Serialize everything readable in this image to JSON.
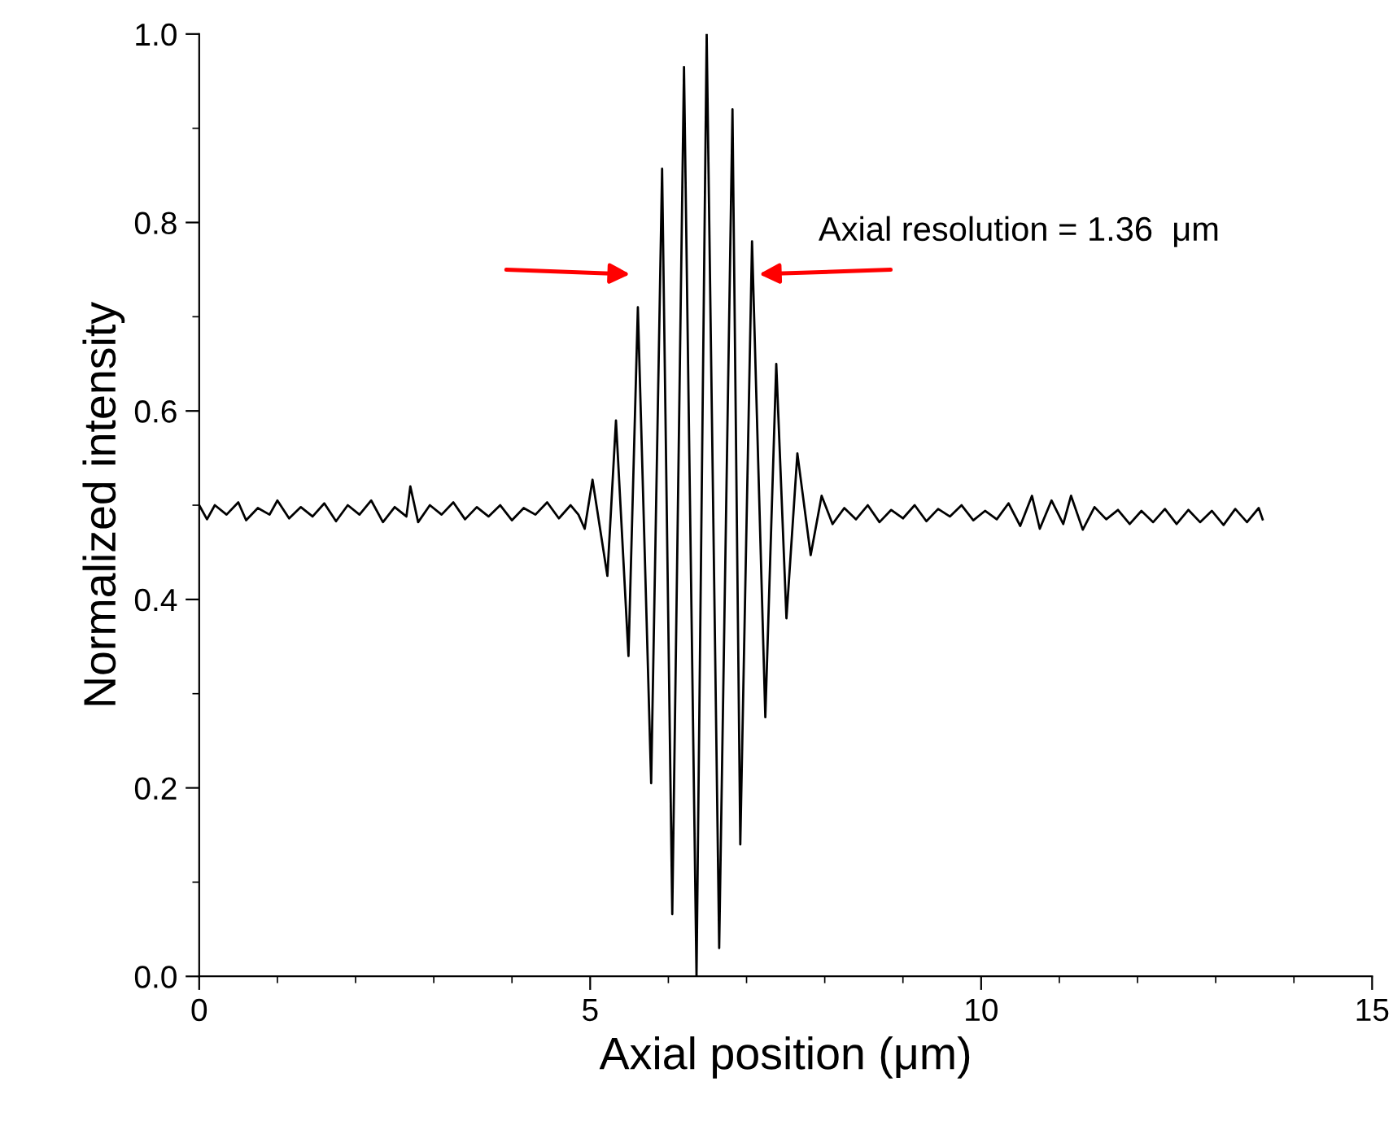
{
  "chart_data": {
    "type": "line",
    "xlabel": "Axial position (μm)",
    "ylabel": "Normalized intensity",
    "xlim": [
      0,
      15
    ],
    "xticks": [
      0,
      5,
      10,
      15
    ],
    "ylim": [
      0,
      1.0
    ],
    "yticks": [
      {
        "value": 0,
        "label": "0.0"
      },
      0.2,
      0.4,
      0.6,
      0.8,
      {
        "value": 1.0,
        "label": "1.0"
      }
    ],
    "grid": false,
    "marker": "none",
    "line_style": "solid",
    "annotations": [
      {
        "text": "Axial resolution = 1.36  μm",
        "x": 7.1,
        "y": 0.745
      }
    ],
    "series": [
      {
        "color": "#000000",
        "x": [
          0,
          0.1,
          0.2,
          0.35,
          0.5,
          0.6,
          0.75,
          0.9,
          1.0,
          1.15,
          1.3,
          1.45,
          1.6,
          1.75,
          1.9,
          2.05,
          2.2,
          2.35,
          2.5,
          2.65,
          2.7,
          2.8,
          2.95,
          3.1,
          3.25,
          3.4,
          3.55,
          3.7,
          3.85,
          4.0,
          4.15,
          4.3,
          4.45,
          4.6,
          4.75,
          4.85,
          4.93,
          5.03,
          5.22,
          5.33,
          5.49,
          5.61,
          5.78,
          5.92,
          6.05,
          6.2,
          6.36,
          6.49,
          6.65,
          6.82,
          6.92,
          7.07,
          7.24,
          7.38,
          7.51,
          7.65,
          7.82,
          7.96,
          8.1,
          8.25,
          8.4,
          8.55,
          8.7,
          8.85,
          9.0,
          9.15,
          9.3,
          9.45,
          9.6,
          9.75,
          9.9,
          10.05,
          10.2,
          10.35,
          10.5,
          10.65,
          10.75,
          10.9,
          11.05,
          11.15,
          11.3,
          11.45,
          11.6,
          11.75,
          11.9,
          12.05,
          12.2,
          12.35,
          12.5,
          12.65,
          12.8,
          12.95,
          13.1,
          13.25,
          13.4,
          13.55,
          13.6
        ],
        "values": [
          0.5,
          0.485,
          0.5,
          0.49,
          0.503,
          0.484,
          0.497,
          0.49,
          0.505,
          0.486,
          0.498,
          0.488,
          0.502,
          0.483,
          0.5,
          0.49,
          0.505,
          0.482,
          0.498,
          0.488,
          0.52,
          0.482,
          0.5,
          0.49,
          0.503,
          0.485,
          0.498,
          0.488,
          0.5,
          0.484,
          0.497,
          0.49,
          0.503,
          0.486,
          0.5,
          0.49,
          0.475,
          0.527,
          0.425,
          0.59,
          0.34,
          0.71,
          0.205,
          0.857,
          0.066,
          0.965,
          0.0,
          1.0,
          0.03,
          0.92,
          0.14,
          0.78,
          0.275,
          0.65,
          0.38,
          0.555,
          0.447,
          0.51,
          0.48,
          0.497,
          0.485,
          0.5,
          0.482,
          0.495,
          0.486,
          0.5,
          0.483,
          0.496,
          0.488,
          0.5,
          0.484,
          0.494,
          0.485,
          0.502,
          0.478,
          0.51,
          0.475,
          0.505,
          0.48,
          0.51,
          0.474,
          0.498,
          0.485,
          0.495,
          0.48,
          0.494,
          0.482,
          0.496,
          0.48,
          0.495,
          0.482,
          0.494,
          0.479,
          0.496,
          0.482,
          0.497,
          0.485
        ]
      }
    ]
  }
}
